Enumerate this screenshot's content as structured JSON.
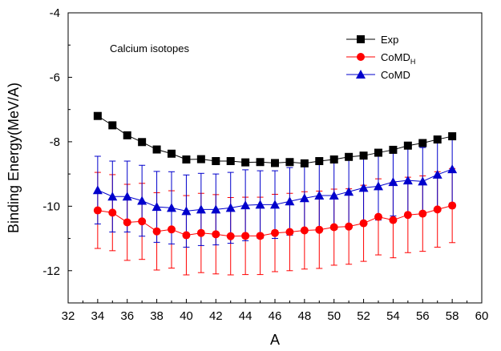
{
  "chart_data": {
    "type": "line",
    "title": "",
    "annotation": "Calcium isotopes",
    "xlabel": "A",
    "ylabel": "Binding Energy(MeV/A)",
    "xlim": [
      32,
      60
    ],
    "ylim": [
      -13,
      -4
    ],
    "xticks": [
      32,
      34,
      36,
      38,
      40,
      42,
      44,
      46,
      48,
      50,
      52,
      54,
      56,
      58,
      60
    ],
    "yticks": [
      -12,
      -10,
      -8,
      -6,
      -4
    ],
    "grid": false,
    "legend_position": "top-right",
    "x": [
      34,
      35,
      36,
      37,
      38,
      39,
      40,
      41,
      42,
      43,
      44,
      45,
      46,
      47,
      48,
      49,
      50,
      51,
      52,
      53,
      54,
      55,
      56,
      57,
      58
    ],
    "series": [
      {
        "name": "Exp",
        "name_main": "Exp",
        "name_sub": "",
        "color": "#000000",
        "marker": "square",
        "values": [
          -7.2,
          -7.49,
          -7.8,
          -8.01,
          -8.24,
          -8.37,
          -8.55,
          -8.54,
          -8.6,
          -8.6,
          -8.64,
          -8.63,
          -8.66,
          -8.63,
          -8.67,
          -8.6,
          -8.55,
          -8.47,
          -8.43,
          -8.34,
          -8.25,
          -8.12,
          -8.04,
          -7.93,
          -7.83
        ],
        "errors": null
      },
      {
        "name": "CoMDH",
        "name_main": "CoMD",
        "name_sub": "H",
        "color": "#ff0000",
        "marker": "circle",
        "values": [
          -10.13,
          -10.2,
          -10.5,
          -10.47,
          -10.78,
          -10.72,
          -10.9,
          -10.83,
          -10.87,
          -10.93,
          -10.92,
          -10.92,
          -10.83,
          -10.8,
          -10.75,
          -10.73,
          -10.65,
          -10.63,
          -10.53,
          -10.33,
          -10.43,
          -10.27,
          -10.23,
          -10.1,
          -9.98
        ],
        "errors": [
          1.18,
          1.18,
          1.18,
          1.18,
          1.2,
          1.2,
          1.23,
          1.23,
          1.23,
          1.2,
          1.2,
          1.2,
          1.2,
          1.2,
          1.2,
          1.2,
          1.18,
          1.17,
          1.18,
          1.18,
          1.17,
          1.17,
          1.17,
          1.17,
          1.15
        ]
      },
      {
        "name": "CoMD",
        "name_main": "CoMD",
        "name_sub": "",
        "color": "#0000cc",
        "marker": "triangle",
        "values": [
          -9.5,
          -9.7,
          -9.7,
          -9.83,
          -10.02,
          -10.05,
          -10.15,
          -10.1,
          -10.1,
          -10.05,
          -9.97,
          -9.95,
          -9.95,
          -9.85,
          -9.75,
          -9.67,
          -9.67,
          -9.55,
          -9.43,
          -9.38,
          -9.25,
          -9.2,
          -9.23,
          -9.02,
          -8.85
        ],
        "errors": [
          1.05,
          1.1,
          1.1,
          1.1,
          1.1,
          1.12,
          1.12,
          1.12,
          1.1,
          1.1,
          1.1,
          1.05,
          1.05,
          1.05,
          1.05,
          1.05,
          1.05,
          1.05,
          1.05,
          1.05,
          1.05,
          1.05,
          1.05,
          1.05,
          1.05
        ]
      }
    ]
  }
}
